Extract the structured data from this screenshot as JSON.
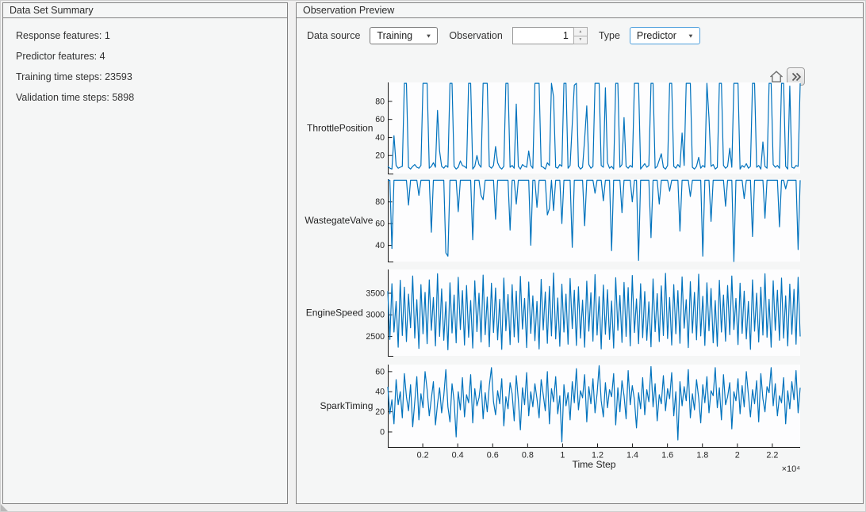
{
  "colors": {
    "line": "#0072BD",
    "focused_dropdown_border": "#4d9fdc",
    "panel_border": "#828282"
  },
  "left_panel": {
    "title": "Data Set Summary",
    "items": [
      "Response features: 1",
      "Predictor features: 4",
      "Training time steps: 23593",
      "Validation time steps: 5898"
    ]
  },
  "right_panel": {
    "title": "Observation Preview",
    "controls": {
      "data_source_label": "Data source",
      "data_source_value": "Training",
      "observation_label": "Observation",
      "observation_value": "1",
      "type_label": "Type",
      "type_value": "Predictor"
    },
    "toolbar": {
      "home_icon": "restore-view",
      "expand_icon": "open-in-figure"
    }
  },
  "chart_data": {
    "type": "line",
    "title": "",
    "xlabel": "Time Step",
    "x_multiplier_label": "×10⁴",
    "xlim": [
      0,
      23593
    ],
    "xticks": [
      0.2,
      0.4,
      0.6,
      0.8,
      1,
      1.2,
      1.4,
      1.6,
      1.8,
      2,
      2.2
    ],
    "xtick_labels": [
      "0.2",
      "0.4",
      "0.6",
      "0.8",
      "1",
      "1.2",
      "1.4",
      "1.6",
      "1.8",
      "2",
      "2.2"
    ],
    "grid": false,
    "legend": "none",
    "line_color": "#0072BD",
    "subplots": [
      {
        "label": "ThrottlePosition",
        "yticks": [
          20,
          40,
          60,
          80
        ],
        "ylim": [
          0,
          101
        ],
        "values": [
          8,
          6,
          5,
          42,
          9,
          6,
          7,
          8,
          100,
          100,
          7,
          5,
          8,
          10,
          7,
          6,
          9,
          100,
          100,
          100,
          6,
          8,
          12,
          7,
          70,
          25,
          8,
          6,
          9,
          7,
          100,
          100,
          8,
          5,
          7,
          14,
          9,
          8,
          6,
          100,
          100,
          5,
          8,
          20,
          10,
          7,
          100,
          100,
          100,
          8,
          6,
          9,
          30,
          12,
          7,
          5,
          8,
          100,
          100,
          7,
          9,
          6,
          77,
          8,
          5,
          10,
          8,
          7,
          25,
          9,
          6,
          100,
          100,
          100,
          8,
          7,
          5,
          12,
          9,
          100,
          85,
          7,
          6,
          10,
          8,
          100,
          100,
          6,
          9,
          55,
          98,
          100,
          8,
          5,
          7,
          38,
          75,
          10,
          6,
          8,
          100,
          100,
          100,
          9,
          7,
          95,
          12,
          6,
          8,
          5,
          100,
          100,
          7,
          10,
          62,
          8,
          6,
          9,
          7,
          100,
          100,
          100,
          5,
          8,
          11,
          7,
          9,
          100,
          100,
          6,
          8,
          15,
          22,
          7,
          5,
          9,
          100,
          100,
          8,
          6,
          10,
          7,
          45,
          9,
          100,
          100,
          100,
          7,
          5,
          8,
          18,
          6,
          9,
          7,
          100,
          62,
          8,
          10,
          5,
          7,
          100,
          100,
          9,
          6,
          8,
          28,
          7,
          100,
          100,
          100,
          5,
          9,
          7,
          11,
          6,
          8,
          100,
          100,
          7,
          9,
          5,
          35,
          8,
          6,
          100,
          100,
          10,
          7,
          9,
          6,
          100,
          100,
          8,
          5,
          97,
          7,
          6,
          9,
          8,
          100
        ]
      },
      {
        "label": "WastegateValve",
        "yticks": [
          40,
          60,
          80
        ],
        "ylim": [
          25,
          101
        ],
        "values": [
          100,
          100,
          37,
          100,
          100,
          100,
          100,
          100,
          100,
          100,
          77,
          100,
          100,
          100,
          100,
          86,
          100,
          100,
          100,
          100,
          100,
          52,
          100,
          100,
          100,
          100,
          100,
          100,
          33,
          30,
          100,
          100,
          100,
          100,
          71,
          100,
          100,
          100,
          100,
          100,
          100,
          45,
          100,
          100,
          100,
          86,
          82,
          100,
          100,
          100,
          100,
          100,
          64,
          100,
          100,
          100,
          100,
          100,
          100,
          54,
          100,
          100,
          78,
          100,
          100,
          100,
          100,
          100,
          100,
          40,
          100,
          100,
          75,
          100,
          100,
          100,
          100,
          68,
          74,
          100,
          72,
          100,
          100,
          100,
          60,
          100,
          100,
          100,
          100,
          38,
          100,
          100,
          100,
          100,
          100,
          58,
          100,
          100,
          100,
          100,
          88,
          100,
          100,
          100,
          81,
          100,
          100,
          100,
          35,
          100,
          100,
          100,
          100,
          70,
          100,
          100,
          100,
          100,
          80,
          100,
          100,
          26,
          100,
          100,
          100,
          100,
          100,
          47,
          100,
          100,
          100,
          78,
          100,
          100,
          100,
          100,
          90,
          100,
          100,
          100,
          100,
          53,
          100,
          100,
          100,
          100,
          85,
          100,
          100,
          100,
          100,
          100,
          30,
          100,
          100,
          100,
          62,
          100,
          100,
          100,
          100,
          100,
          100,
          76,
          100,
          100,
          100,
          22,
          100,
          100,
          100,
          100,
          83,
          100,
          100,
          100,
          48,
          100,
          100,
          100,
          100,
          100,
          65,
          100,
          100,
          100,
          100,
          100,
          100,
          57,
          100,
          100,
          92,
          100,
          100,
          100,
          100,
          100,
          36,
          100
        ]
      },
      {
        "label": "EngineSpeed",
        "yticks": [
          2500,
          3000,
          3500
        ],
        "ylim": [
          2050,
          4050
        ],
        "values": [
          3550,
          2430,
          3720,
          2600,
          3310,
          2250,
          3800,
          2520,
          3640,
          2380,
          3480,
          2700,
          3900,
          2460,
          3350,
          2220,
          3700,
          2560,
          3520,
          2330,
          3810,
          2640,
          3400,
          2280,
          3950,
          2500,
          3600,
          2410,
          3300,
          2190,
          3740,
          2580,
          3460,
          2350,
          3870,
          2660,
          3560,
          2300,
          3680,
          2480,
          3330,
          2230,
          3790,
          2610,
          3500,
          2370,
          3920,
          2540,
          3410,
          2260,
          3730,
          2590,
          3620,
          2420,
          3360,
          2200,
          3850,
          2630,
          3470,
          2310,
          3700,
          2490,
          3550,
          2360,
          3890,
          2670,
          3380,
          2240,
          3760,
          2570,
          3440,
          2400,
          3310,
          2210,
          3820,
          2650,
          3530,
          2340,
          3660,
          2510,
          3970,
          2440,
          3390,
          2270,
          3710,
          2600,
          3480,
          2320,
          3840,
          2680,
          3570,
          2290,
          3650,
          2460,
          3340,
          2250,
          3780,
          2620,
          3510,
          2390,
          3930,
          2530,
          3420,
          2210,
          3690,
          2550,
          3580,
          2430,
          3320,
          2230,
          3860,
          2640,
          3450,
          2360,
          3750,
          2500,
          3630,
          2280,
          3910,
          2590,
          3370,
          2330,
          3720,
          2470,
          3540,
          2410,
          3300,
          2260,
          3830,
          2610,
          3490,
          2380,
          3670,
          2520,
          3960,
          2450,
          3400,
          2300,
          3700,
          2560,
          3560,
          2340,
          3880,
          2690,
          3350,
          2240,
          3770,
          2580,
          3520,
          2420,
          3940,
          2510,
          3430,
          2290,
          3740,
          2630,
          3610,
          2350,
          3330,
          2270,
          3800,
          2600,
          3460,
          2390,
          3680,
          2540,
          3900,
          2660,
          3380,
          2310,
          3730,
          2570,
          3550,
          2440,
          3310,
          2200,
          3810,
          2620,
          3500,
          2370,
          3640,
          2530,
          3950,
          2480,
          3360,
          2250,
          3790,
          2640,
          3570,
          2410,
          3850,
          2460,
          3440,
          2280,
          3710,
          2550,
          3590,
          2320,
          3870,
          2500
        ]
      },
      {
        "label": "SparkTiming",
        "yticks": [
          0,
          20,
          40,
          60
        ],
        "ylim": [
          -15,
          67
        ],
        "values": [
          45,
          18,
          32,
          8,
          52,
          27,
          40,
          14,
          58,
          35,
          21,
          47,
          5,
          30,
          55,
          12,
          38,
          24,
          60,
          42,
          16,
          33,
          50,
          7,
          28,
          44,
          19,
          36,
          62,
          25,
          10,
          48,
          31,
          -5,
          40,
          22,
          54,
          15,
          37,
          29,
          57,
          9,
          43,
          26,
          34,
          51,
          13,
          39,
          20,
          46,
          64,
          30,
          17,
          41,
          28,
          53,
          6,
          35,
          23,
          49,
          38,
          11,
          56,
          32,
          2,
          44,
          27,
          59,
          16,
          40,
          25,
          48,
          33,
          14,
          52,
          37,
          21,
          60,
          8,
          43,
          30,
          55,
          18,
          36,
          -10,
          47,
          26,
          39,
          12,
          50,
          29,
          63,
          22,
          41,
          34,
          57,
          10,
          45,
          28,
          53,
          19,
          38,
          66,
          31,
          15,
          49,
          24,
          42,
          35,
          58,
          7,
          44,
          20,
          51,
          36,
          13,
          61,
          27,
          46,
          32,
          4,
          39,
          23,
          54,
          17,
          42,
          30,
          65,
          25,
          48,
          11,
          37,
          28,
          56,
          21,
          43,
          33,
          59,
          16,
          40,
          -8,
          50,
          26,
          45,
          31,
          62,
          14,
          38,
          22,
          52,
          34,
          9,
          47,
          29,
          55,
          19,
          41,
          36,
          64,
          24,
          44,
          12,
          57,
          27,
          35,
          49,
          3,
          40,
          31,
          53,
          18,
          46,
          25,
          60,
          37,
          15,
          42,
          28,
          51,
          10,
          58,
          33,
          20,
          45,
          39,
          64,
          26,
          48,
          16,
          36,
          29,
          54,
          8,
          41,
          23,
          50,
          32,
          61,
          19,
          44
        ]
      }
    ]
  }
}
